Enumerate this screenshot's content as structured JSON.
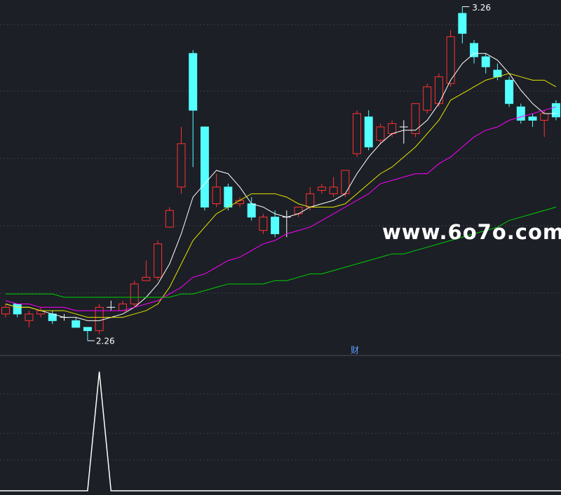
{
  "watermark": "www.6o7o.com",
  "chart_data": [
    {
      "type": "candlestick",
      "annotation": "财",
      "high_label": 3.26,
      "low_label": 2.26,
      "ylim": [
        2.22,
        3.28
      ],
      "up_color": "#ff3232",
      "down_color": "#54ffff",
      "flat_color": "#ffffff",
      "open": [
        2.34,
        2.37,
        2.32,
        2.34,
        2.34,
        2.33,
        2.32,
        2.3,
        2.29,
        2.36,
        2.35,
        2.37,
        2.44,
        2.45,
        2.6,
        2.72,
        3.12,
        2.9,
        2.67,
        2.72,
        2.67,
        2.67,
        2.59,
        2.63,
        2.63,
        2.64,
        2.66,
        2.71,
        2.7,
        2.7,
        2.82,
        2.93,
        2.86,
        2.88,
        2.9,
        2.88,
        2.95,
        2.97,
        3.03,
        3.24,
        3.15,
        3.11,
        3.07,
        3.04,
        2.96,
        2.93,
        2.92,
        2.97
      ],
      "high": [
        2.37,
        2.37,
        2.35,
        2.36,
        2.35,
        2.34,
        2.33,
        2.3,
        2.37,
        2.38,
        2.38,
        2.44,
        2.5,
        2.56,
        2.66,
        2.9,
        3.13,
        2.9,
        2.76,
        2.73,
        2.69,
        2.69,
        2.64,
        2.65,
        2.65,
        2.66,
        2.72,
        2.73,
        2.75,
        2.77,
        2.95,
        2.95,
        2.91,
        2.92,
        2.92,
        2.97,
        3.03,
        3.06,
        3.19,
        3.26,
        3.16,
        3.12,
        3.09,
        3.05,
        2.97,
        2.94,
        2.95,
        2.98
      ],
      "low": [
        2.33,
        2.33,
        2.3,
        2.33,
        2.31,
        2.32,
        2.3,
        2.26,
        2.28,
        2.35,
        2.35,
        2.36,
        2.44,
        2.44,
        2.6,
        2.7,
        2.78,
        2.65,
        2.66,
        2.65,
        2.66,
        2.62,
        2.58,
        2.57,
        2.57,
        2.63,
        2.65,
        2.7,
        2.69,
        2.69,
        2.81,
        2.83,
        2.85,
        2.87,
        2.85,
        2.87,
        2.94,
        2.96,
        3.02,
        3.15,
        3.09,
        3.06,
        3.04,
        2.96,
        2.91,
        2.9,
        2.87,
        2.92
      ],
      "close": [
        2.36,
        2.34,
        2.34,
        2.35,
        2.32,
        2.33,
        2.3,
        2.29,
        2.36,
        2.36,
        2.37,
        2.43,
        2.45,
        2.55,
        2.65,
        2.85,
        2.95,
        2.66,
        2.72,
        2.66,
        2.68,
        2.63,
        2.63,
        2.58,
        2.63,
        2.66,
        2.7,
        2.72,
        2.72,
        2.77,
        2.94,
        2.84,
        2.9,
        2.91,
        2.9,
        2.97,
        3.02,
        3.05,
        3.17,
        3.18,
        3.11,
        3.08,
        3.05,
        2.97,
        2.92,
        2.92,
        2.94,
        2.93
      ],
      "series": [
        {
          "color": "#ffffff",
          "values": [
            2.37,
            2.36,
            2.36,
            2.35,
            2.34,
            2.33,
            2.33,
            2.32,
            2.32,
            2.33,
            2.34,
            2.36,
            2.39,
            2.43,
            2.49,
            2.58,
            2.69,
            2.73,
            2.77,
            2.76,
            2.72,
            2.67,
            2.66,
            2.64,
            2.63,
            2.64,
            2.66,
            2.67,
            2.68,
            2.7,
            2.76,
            2.81,
            2.85,
            2.88,
            2.89,
            2.89,
            2.92,
            2.97,
            3.04,
            3.09,
            3.12,
            3.12,
            3.1,
            3.06,
            3.01,
            2.97,
            2.94,
            2.94
          ]
        },
        {
          "color": "#e6e600",
          "values": [
            2.37,
            2.36,
            2.36,
            2.35,
            2.35,
            2.35,
            2.34,
            2.33,
            2.33,
            2.33,
            2.33,
            2.34,
            2.35,
            2.37,
            2.42,
            2.49,
            2.56,
            2.6,
            2.64,
            2.66,
            2.68,
            2.7,
            2.7,
            2.7,
            2.69,
            2.67,
            2.66,
            2.66,
            2.66,
            2.67,
            2.7,
            2.73,
            2.76,
            2.78,
            2.81,
            2.84,
            2.88,
            2.92,
            2.98,
            3.0,
            3.02,
            3.04,
            3.05,
            3.06,
            3.05,
            3.04,
            3.04,
            3.02
          ]
        },
        {
          "color": "#ff00ff",
          "values": [
            2.38,
            2.37,
            2.37,
            2.36,
            2.36,
            2.36,
            2.35,
            2.35,
            2.35,
            2.35,
            2.35,
            2.36,
            2.37,
            2.38,
            2.4,
            2.42,
            2.45,
            2.46,
            2.48,
            2.5,
            2.51,
            2.53,
            2.55,
            2.56,
            2.58,
            2.59,
            2.6,
            2.62,
            2.64,
            2.66,
            2.68,
            2.7,
            2.73,
            2.74,
            2.75,
            2.76,
            2.76,
            2.79,
            2.81,
            2.84,
            2.87,
            2.89,
            2.9,
            2.92,
            2.93,
            2.94,
            2.95,
            2.96
          ]
        },
        {
          "color": "#00d000",
          "values": [
            2.4,
            2.4,
            2.4,
            2.4,
            2.4,
            2.39,
            2.39,
            2.39,
            2.39,
            2.39,
            2.39,
            2.39,
            2.39,
            2.39,
            2.39,
            2.4,
            2.4,
            2.41,
            2.42,
            2.43,
            2.43,
            2.43,
            2.43,
            2.44,
            2.44,
            2.45,
            2.46,
            2.46,
            2.47,
            2.48,
            2.49,
            2.5,
            2.51,
            2.52,
            2.52,
            2.53,
            2.54,
            2.55,
            2.56,
            2.57,
            2.58,
            2.59,
            2.6,
            2.62,
            2.63,
            2.64,
            2.65,
            2.66
          ]
        }
      ]
    },
    {
      "type": "line",
      "ylim": [
        0,
        1.13
      ],
      "color": "#ffffff",
      "values": [
        0,
        0,
        0,
        0,
        0,
        0,
        0,
        0,
        1,
        0,
        0,
        0,
        0,
        0,
        0,
        0,
        0,
        0,
        0,
        0,
        0,
        0,
        0,
        0,
        0,
        0,
        0,
        0,
        0,
        0,
        0,
        0,
        0,
        0,
        0,
        0,
        0,
        0,
        0,
        0,
        0,
        0,
        0,
        0,
        0,
        0,
        0,
        0
      ]
    }
  ]
}
